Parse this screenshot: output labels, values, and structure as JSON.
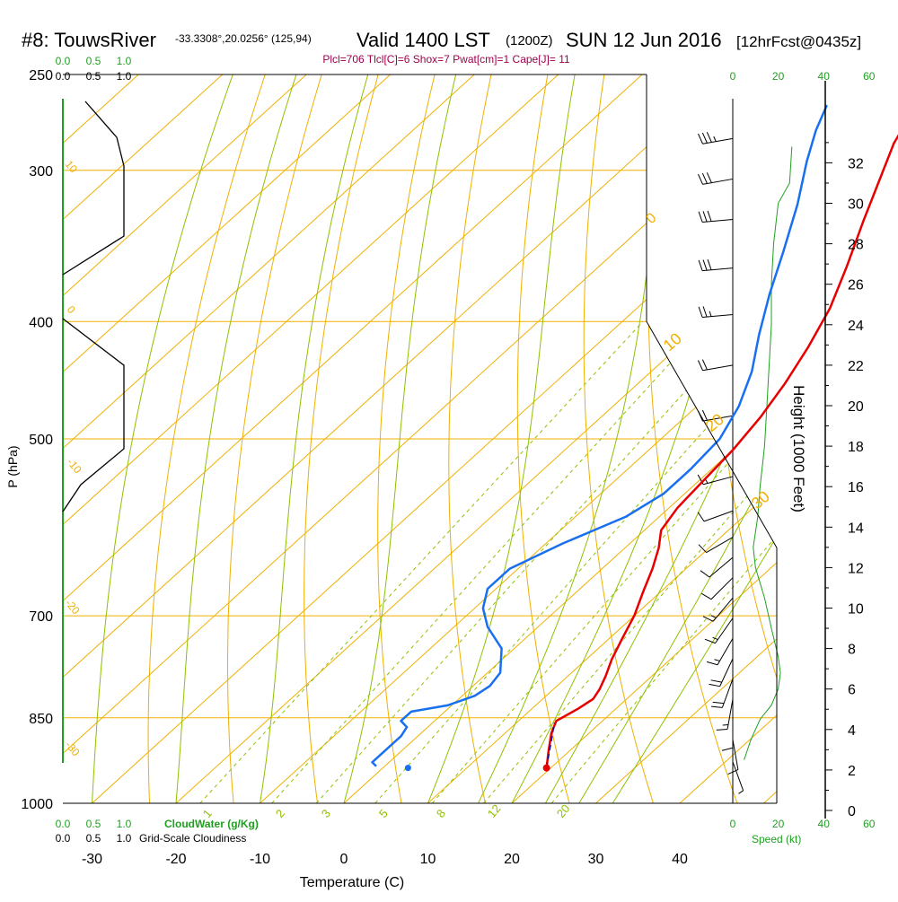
{
  "header": {
    "station": "#8: TouwsRiver",
    "coords": "-33.3308°,20.0256° (125,94)",
    "valid": "Valid 1400 LST",
    "zulu": "(1200Z)",
    "date": "SUN 12 Jun 2016",
    "forecast": "[12hrFcst@0435z]",
    "indices": "Plcl=706 Tlcl[C]=6 Shox=7 Pwat[cm]=1 Cape[J]= 11"
  },
  "colors": {
    "isotherm": "#f0b000",
    "dry_adiabat": "#f0b000",
    "moist_adiabat": "#90c000",
    "mixing_ratio": "#90c000",
    "temperature": "#e80000",
    "dewpoint": "#1870f0",
    "parcel": "#0000a0",
    "cloud": "#20a020",
    "header_accent": "#a0004c"
  },
  "chart_data": {
    "type": "line",
    "xlabel": "Temperature (C)",
    "ylabel": "P (hPa)",
    "right_label": "Height (1000 Feet)",
    "xlim": [
      -35,
      45
    ],
    "ylim": [
      1000,
      250
    ],
    "x_ticks": [
      "-30",
      "-20",
      "-10",
      "0",
      "10",
      "20",
      "30",
      "40"
    ],
    "pressure_ticks": [
      "250",
      "300",
      "400",
      "500",
      "700",
      "850",
      "1000"
    ],
    "height_ticks": [
      "0",
      "2",
      "4",
      "6",
      "8",
      "10",
      "12",
      "14",
      "16",
      "18",
      "20",
      "22",
      "24",
      "26",
      "28",
      "30",
      "32"
    ],
    "mixing_ratio_labels": [
      "1",
      "2",
      "3",
      "5",
      "8",
      "12",
      "20"
    ],
    "moist_labels": [
      "10",
      "0",
      "-10",
      "-20",
      "-30"
    ],
    "dry_labels": [
      "0",
      "10",
      "20",
      "30"
    ],
    "cloud_axis": {
      "ticks_top": [
        "0.0",
        "0.5",
        "1.0"
      ],
      "ticks_top2": [
        "0.0",
        "0.5",
        "1.0"
      ],
      "ticks_bottom": [
        "0.0",
        "0.5",
        "1.0"
      ],
      "ticks_bottom2": [
        "0.0",
        "0.5",
        "1.0"
      ],
      "label_water": "CloudWater (g/Kg)",
      "label_cloudiness": "Grid-Scale Cloudiness"
    },
    "speed_axis": {
      "ticks_top": [
        "0",
        "20",
        "40",
        "60"
      ],
      "ticks_bottom": [
        "0",
        "20",
        "40",
        "60"
      ],
      "label": "Speed (kt)"
    },
    "series": [
      {
        "name": "Temperature",
        "points": [
          [
            19.5,
            935
          ],
          [
            17.5,
            905
          ],
          [
            15.5,
            875
          ],
          [
            14.5,
            855
          ],
          [
            15,
            845
          ],
          [
            15.5,
            835
          ],
          [
            16,
            820
          ],
          [
            15.5,
            805
          ],
          [
            14.5,
            785
          ],
          [
            13,
            760
          ],
          [
            11.5,
            730
          ],
          [
            10,
            700
          ],
          [
            8,
            670
          ],
          [
            6,
            640
          ],
          [
            4,
            615
          ],
          [
            2,
            595
          ],
          [
            1,
            570
          ],
          [
            0.5,
            540
          ],
          [
            0,
            510
          ],
          [
            -1,
            480
          ],
          [
            -2.5,
            450
          ],
          [
            -4.5,
            420
          ],
          [
            -7,
            390
          ],
          [
            -10.5,
            360
          ],
          [
            -14.5,
            330
          ],
          [
            -18,
            305
          ],
          [
            -21,
            285
          ],
          [
            -23,
            268
          ]
        ]
      },
      {
        "name": "Dewpoint",
        "points": [
          [
            -1,
            932
          ],
          [
            -2,
            925
          ],
          [
            -2,
            880
          ],
          [
            -2.5,
            865
          ],
          [
            -4,
            855
          ],
          [
            -4,
            840
          ],
          [
            -0.5,
            830
          ],
          [
            1.5,
            815
          ],
          [
            2,
            800
          ],
          [
            1.5,
            780
          ],
          [
            -1.5,
            745
          ],
          [
            -6,
            715
          ],
          [
            -9,
            690
          ],
          [
            -11,
            665
          ],
          [
            -11,
            640
          ],
          [
            -8,
            610
          ],
          [
            -4,
            580
          ],
          [
            -2.5,
            555
          ],
          [
            -2.5,
            530
          ],
          [
            -3,
            500
          ],
          [
            -5,
            470
          ],
          [
            -8,
            440
          ],
          [
            -12,
            410
          ],
          [
            -16,
            380
          ],
          [
            -20,
            350
          ],
          [
            -24.5,
            320
          ],
          [
            -29,
            295
          ],
          [
            -32,
            278
          ],
          [
            -34,
            265
          ]
        ]
      },
      {
        "name": "Parcel",
        "points": [
          [
            19.5,
            935
          ],
          [
            16,
            880
          ],
          [
            14.5,
            858
          ]
        ]
      }
    ],
    "surface_dewpoint": [
      3,
      935
    ],
    "cloud_profile_heights": [
      6.5,
      7,
      8,
      10,
      12,
      14,
      16,
      18,
      20,
      22,
      24,
      26,
      28,
      30,
      31,
      32.5
    ],
    "wind_speed_profile": [
      [
        2.5,
        5
      ],
      [
        3.5,
        8
      ],
      [
        4.5,
        12
      ],
      [
        5.2,
        17
      ],
      [
        6,
        20
      ],
      [
        6.8,
        21
      ],
      [
        7.6,
        20
      ],
      [
        9,
        17
      ],
      [
        10.5,
        14
      ],
      [
        12,
        10
      ],
      [
        13,
        9
      ],
      [
        14.5,
        11
      ],
      [
        16,
        12
      ],
      [
        18,
        14
      ],
      [
        20,
        15
      ],
      [
        22,
        16
      ],
      [
        24,
        17
      ],
      [
        26,
        17
      ],
      [
        28,
        18
      ],
      [
        30,
        20
      ],
      [
        31,
        25
      ],
      [
        32.8,
        26
      ]
    ],
    "wind_barbs": [
      [
        2.4,
        5,
        160
      ],
      [
        3.5,
        8,
        170
      ],
      [
        4.6,
        12,
        180
      ],
      [
        5.5,
        15,
        190
      ],
      [
        6.5,
        18,
        200
      ],
      [
        7.5,
        18,
        205
      ],
      [
        8.5,
        17,
        210
      ],
      [
        9.5,
        15,
        215
      ],
      [
        10.5,
        14,
        220
      ],
      [
        11.5,
        12,
        225
      ],
      [
        12.5,
        10,
        230
      ],
      [
        13.5,
        10,
        240
      ],
      [
        14.8,
        12,
        250
      ],
      [
        16.5,
        14,
        255
      ],
      [
        19.5,
        18,
        260
      ],
      [
        22,
        22,
        260
      ],
      [
        24.5,
        25,
        265
      ],
      [
        26.8,
        28,
        265
      ],
      [
        29.2,
        30,
        265
      ],
      [
        31.2,
        32,
        260
      ],
      [
        33.2,
        35,
        260
      ]
    ]
  }
}
